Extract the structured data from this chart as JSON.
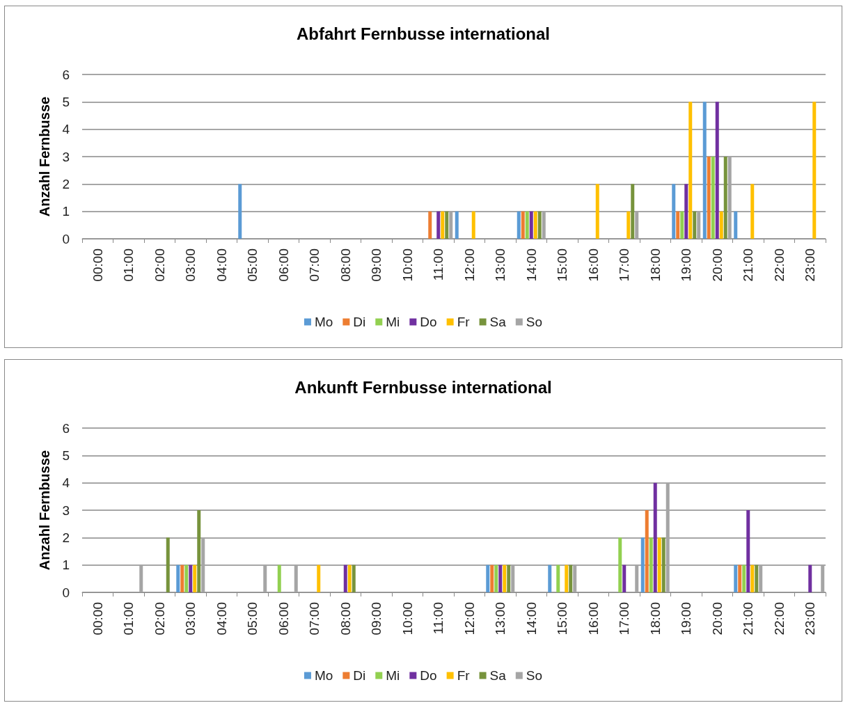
{
  "chart_data": [
    {
      "type": "bar",
      "title": "Abfahrt Fernbusse international",
      "ylabel": "Anzahl Fernbusse",
      "categories": [
        "00:00",
        "01:00",
        "02:00",
        "03:00",
        "04:00",
        "05:00",
        "06:00",
        "07:00",
        "08:00",
        "09:00",
        "10:00",
        "11:00",
        "12:00",
        "13:00",
        "14:00",
        "15:00",
        "16:00",
        "17:00",
        "18:00",
        "19:00",
        "20:00",
        "21:00",
        "22:00",
        "23:00"
      ],
      "ylim": [
        0,
        6
      ],
      "yticks": [
        0,
        1,
        2,
        3,
        4,
        5,
        6
      ],
      "grid": "y",
      "legend": "bottom",
      "series": [
        {
          "name": "Mo",
          "color": "#5b9bd5",
          "values": [
            0,
            0,
            0,
            0,
            0,
            2,
            0,
            0,
            0,
            0,
            0,
            0,
            1,
            0,
            1,
            0,
            0,
            0,
            0,
            2,
            5,
            1,
            0,
            0
          ]
        },
        {
          "name": "Di",
          "color": "#ed7d31",
          "values": [
            0,
            0,
            0,
            0,
            0,
            0,
            0,
            0,
            0,
            0,
            0,
            1,
            0,
            0,
            1,
            0,
            0,
            0,
            0,
            1,
            3,
            0,
            0,
            0
          ]
        },
        {
          "name": "Mi",
          "color": "#92d050",
          "values": [
            0,
            0,
            0,
            0,
            0,
            0,
            0,
            0,
            0,
            0,
            0,
            0,
            0,
            0,
            1,
            0,
            0,
            0,
            0,
            1,
            3,
            0,
            0,
            0
          ]
        },
        {
          "name": "Do",
          "color": "#7030a0",
          "values": [
            0,
            0,
            0,
            0,
            0,
            0,
            0,
            0,
            0,
            0,
            0,
            1,
            0,
            0,
            1,
            0,
            0,
            0,
            0,
            2,
            5,
            0,
            0,
            0
          ]
        },
        {
          "name": "Fr",
          "color": "#ffc000",
          "values": [
            0,
            0,
            0,
            0,
            0,
            0,
            0,
            0,
            0,
            0,
            0,
            1,
            1,
            0,
            1,
            0,
            2,
            1,
            0,
            5,
            1,
            2,
            0,
            5
          ]
        },
        {
          "name": "Sa",
          "color": "#77933c",
          "values": [
            0,
            0,
            0,
            0,
            0,
            0,
            0,
            0,
            0,
            0,
            0,
            1,
            0,
            0,
            1,
            0,
            0,
            2,
            0,
            1,
            3,
            0,
            0,
            0
          ]
        },
        {
          "name": "So",
          "color": "#a5a5a5",
          "values": [
            0,
            0,
            0,
            0,
            0,
            0,
            0,
            0,
            0,
            0,
            0,
            1,
            0,
            0,
            1,
            0,
            0,
            1,
            0,
            1,
            3,
            0,
            0,
            0
          ]
        }
      ]
    },
    {
      "type": "bar",
      "title": "Ankunft Fernbusse international",
      "ylabel": "Anzahl Fernbusse",
      "categories": [
        "00:00",
        "01:00",
        "02:00",
        "03:00",
        "04:00",
        "05:00",
        "06:00",
        "07:00",
        "08:00",
        "09:00",
        "10:00",
        "11:00",
        "12:00",
        "13:00",
        "14:00",
        "15:00",
        "16:00",
        "17:00",
        "18:00",
        "19:00",
        "20:00",
        "21:00",
        "22:00",
        "23:00"
      ],
      "ylim": [
        0,
        6
      ],
      "yticks": [
        0,
        1,
        2,
        3,
        4,
        5,
        6
      ],
      "grid": "y",
      "legend": "bottom",
      "series": [
        {
          "name": "Mo",
          "color": "#5b9bd5",
          "values": [
            0,
            0,
            0,
            1,
            0,
            0,
            0,
            0,
            0,
            0,
            0,
            0,
            0,
            1,
            0,
            1,
            0,
            0,
            2,
            0,
            0,
            1,
            0,
            0
          ]
        },
        {
          "name": "Di",
          "color": "#ed7d31",
          "values": [
            0,
            0,
            0,
            1,
            0,
            0,
            0,
            0,
            0,
            0,
            0,
            0,
            0,
            1,
            0,
            0,
            0,
            0,
            3,
            0,
            0,
            1,
            0,
            0
          ]
        },
        {
          "name": "Mi",
          "color": "#92d050",
          "values": [
            0,
            0,
            0,
            1,
            0,
            0,
            1,
            0,
            0,
            0,
            0,
            0,
            0,
            1,
            0,
            1,
            0,
            2,
            2,
            0,
            0,
            1,
            0,
            0
          ]
        },
        {
          "name": "Do",
          "color": "#7030a0",
          "values": [
            0,
            0,
            0,
            1,
            0,
            0,
            0,
            0,
            1,
            0,
            0,
            0,
            0,
            1,
            0,
            0,
            0,
            1,
            4,
            0,
            0,
            3,
            0,
            1
          ]
        },
        {
          "name": "Fr",
          "color": "#ffc000",
          "values": [
            0,
            0,
            0,
            1,
            0,
            0,
            0,
            1,
            1,
            0,
            0,
            0,
            0,
            1,
            0,
            1,
            0,
            0,
            2,
            0,
            0,
            1,
            0,
            0
          ]
        },
        {
          "name": "Sa",
          "color": "#77933c",
          "values": [
            0,
            0,
            2,
            3,
            0,
            0,
            0,
            0,
            1,
            0,
            0,
            0,
            0,
            1,
            0,
            1,
            0,
            0,
            2,
            0,
            0,
            1,
            0,
            0
          ]
        },
        {
          "name": "So",
          "color": "#a5a5a5",
          "values": [
            0,
            1,
            0,
            2,
            0,
            1,
            1,
            0,
            0,
            0,
            0,
            0,
            0,
            1,
            0,
            1,
            0,
            1,
            4,
            0,
            0,
            1,
            0,
            1
          ]
        }
      ]
    }
  ]
}
